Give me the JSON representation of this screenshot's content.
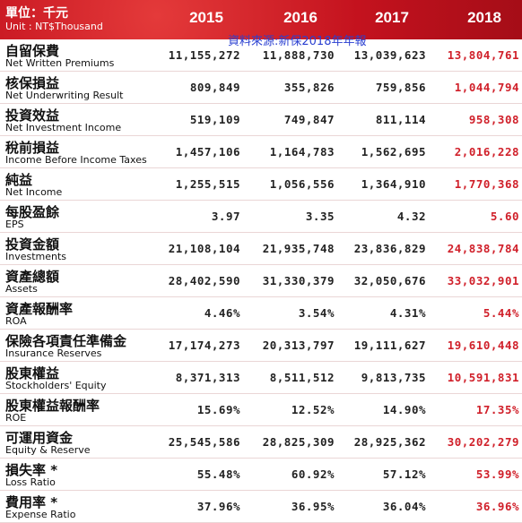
{
  "header": {
    "unit_zh": "單位：千元",
    "unit_en": "Unit : NT$Thousand",
    "years": [
      "2015",
      "2016",
      "2017",
      "2018"
    ]
  },
  "source": "資料來源:新保2018年年報",
  "rows": [
    {
      "zh": "自留保費",
      "en": "Net Written Premiums",
      "values": [
        "11,155,272",
        "11,888,730",
        "13,039,623",
        "13,804,761"
      ]
    },
    {
      "zh": "核保損益",
      "en": "Net Underwriting Result",
      "values": [
        "809,849",
        "355,826",
        "759,856",
        "1,044,794"
      ]
    },
    {
      "zh": "投資效益",
      "en": "Net Investment Income",
      "values": [
        "519,109",
        "749,847",
        "811,114",
        "958,308"
      ]
    },
    {
      "zh": "稅前損益",
      "en": "Income Before Income Taxes",
      "values": [
        "1,457,106",
        "1,164,783",
        "1,562,695",
        "2,016,228"
      ]
    },
    {
      "zh": "純益",
      "en": "Net Income",
      "values": [
        "1,255,515",
        "1,056,556",
        "1,364,910",
        "1,770,368"
      ]
    },
    {
      "zh": "每股盈餘",
      "en": "EPS",
      "values": [
        "3.97",
        "3.35",
        "4.32",
        "5.60"
      ]
    },
    {
      "zh": "投資金額",
      "en": "Investments",
      "values": [
        "21,108,104",
        "21,935,748",
        "23,836,829",
        "24,838,784"
      ]
    },
    {
      "zh": "資產總額",
      "en": "Assets",
      "values": [
        "28,402,590",
        "31,330,379",
        "32,050,676",
        "33,032,901"
      ]
    },
    {
      "zh": "資產報酬率",
      "en": "ROA",
      "values": [
        "4.46%",
        "3.54%",
        "4.31%",
        "5.44%"
      ]
    },
    {
      "zh": "保險各項責任準備金",
      "en": "Insurance Reserves",
      "values": [
        "17,174,273",
        "20,313,797",
        "19,111,627",
        "19,610,448"
      ]
    },
    {
      "zh": "股東權益",
      "en": "Stockholders' Equity",
      "values": [
        "8,371,313",
        "8,511,512",
        "9,813,735",
        "10,591,831"
      ]
    },
    {
      "zh": "股東權益報酬率",
      "en": "ROE",
      "values": [
        "15.69%",
        "12.52%",
        "14.90%",
        "17.35%"
      ]
    },
    {
      "zh": "可運用資金",
      "en": "Equity & Reserve",
      "values": [
        "25,545,586",
        "28,825,309",
        "28,925,362",
        "30,202,279"
      ]
    },
    {
      "zh": "損失率 *",
      "en": "Loss Ratio",
      "values": [
        "55.48%",
        "60.92%",
        "57.12%",
        "53.99%"
      ]
    },
    {
      "zh": "費用率 *",
      "en": "Expense Ratio",
      "values": [
        "37.96%",
        "36.95%",
        "36.04%",
        "36.96%"
      ]
    }
  ]
}
